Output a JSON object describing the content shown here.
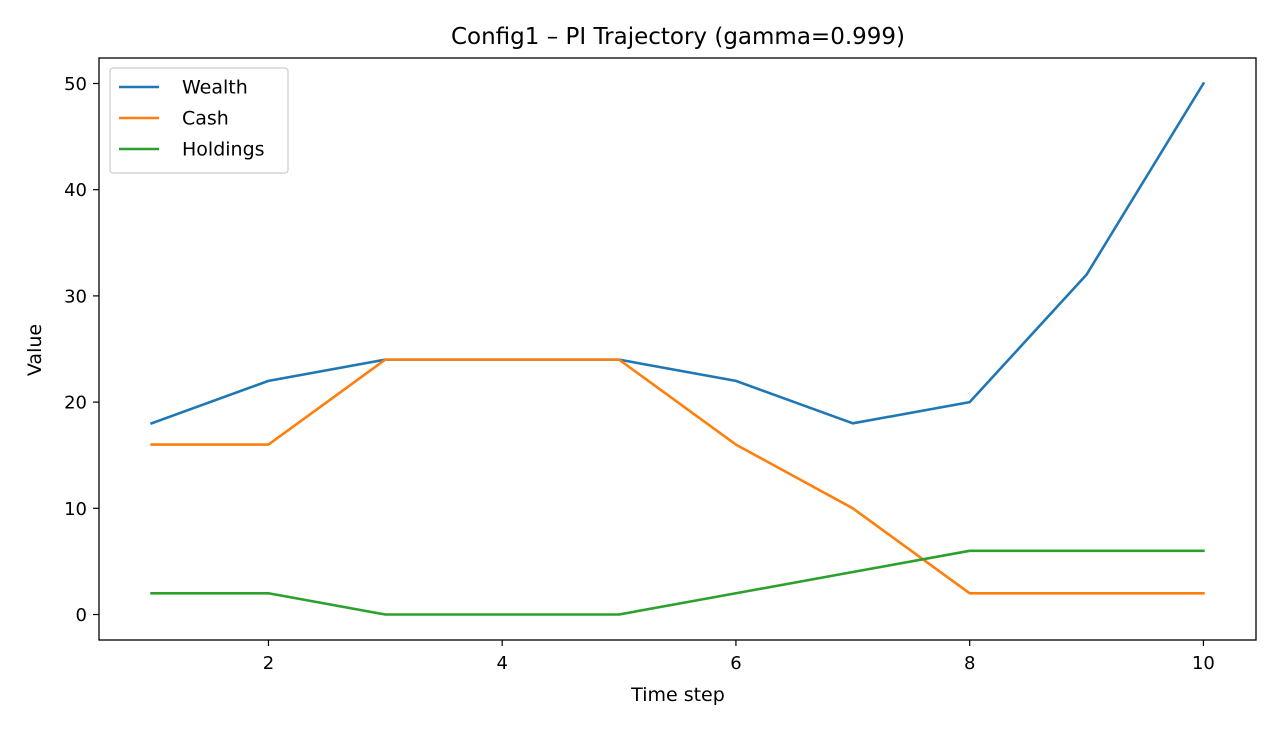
{
  "chart_data": {
    "type": "line",
    "title": "Config1 – PI Trajectory (gamma=0.999)",
    "xlabel": "Time step",
    "ylabel": "Value",
    "x": [
      1,
      2,
      3,
      4,
      5,
      6,
      7,
      8,
      9,
      10
    ],
    "xlim": [
      0.55,
      10.45
    ],
    "ylim": [
      -2.4,
      52.4
    ],
    "xticks": [
      2,
      4,
      6,
      8,
      10
    ],
    "yticks": [
      0,
      10,
      20,
      30,
      40,
      50
    ],
    "grid": false,
    "legend_position": "upper-left",
    "series": [
      {
        "name": "Wealth",
        "color": "#1f77b4",
        "values": [
          18,
          22,
          24,
          24,
          24,
          22,
          18,
          20,
          32,
          50
        ]
      },
      {
        "name": "Cash",
        "color": "#ff7f0e",
        "values": [
          16,
          16,
          24,
          24,
          24,
          16,
          10,
          2,
          2,
          2
        ]
      },
      {
        "name": "Holdings",
        "color": "#2ca02c",
        "values": [
          2,
          2,
          0,
          0,
          0,
          2,
          4,
          6,
          6,
          6
        ]
      }
    ]
  }
}
